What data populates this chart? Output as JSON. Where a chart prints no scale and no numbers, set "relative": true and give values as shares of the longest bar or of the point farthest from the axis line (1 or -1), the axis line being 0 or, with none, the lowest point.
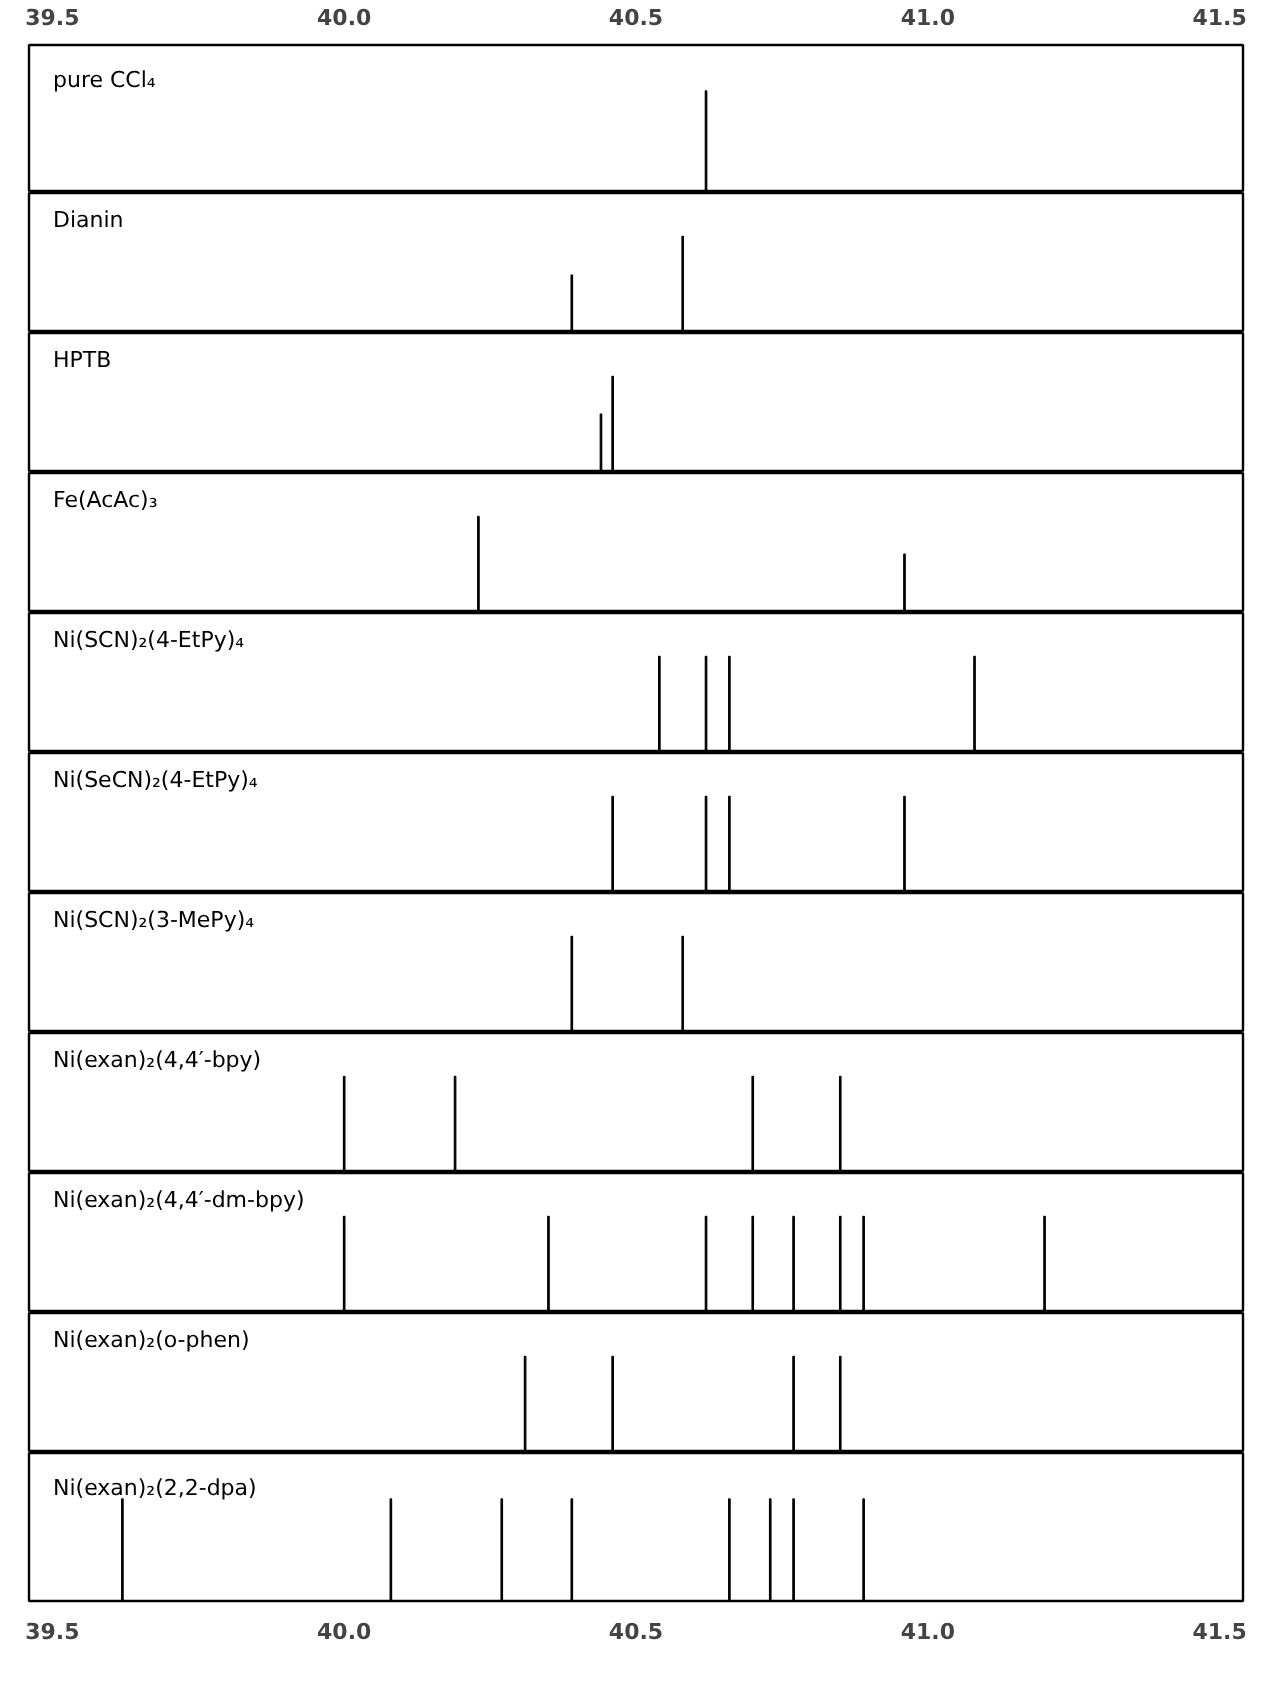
{
  "chart_data": [
    {
      "type": "bar",
      "title": "pure CCl₄",
      "relative": true,
      "color": "#000000",
      "x": [
        40.62
      ],
      "values": [
        1
      ],
      "xlim": [
        39.46,
        41.54
      ],
      "x2lim": [
        39.46,
        41.54
      ],
      "x2ticks": [
        {
          "value": 39.5,
          "label": "39.5"
        },
        {
          "value": 40.0,
          "label": "40.0"
        },
        {
          "value": 40.5,
          "label": "40.5"
        },
        {
          "value": 41.0,
          "label": "41.0"
        },
        {
          "value": 41.5,
          "label": "41.5"
        }
      ],
      "tick_labels": false
    },
    {
      "type": "bar",
      "title": "Dianin",
      "relative": true,
      "color": "#000000",
      "x": [
        40.39,
        40.58
      ],
      "values": [
        0.6,
        1
      ],
      "xlim": [
        39.46,
        41.54
      ],
      "tick_labels": false
    },
    {
      "type": "bar",
      "title": "HPTB",
      "relative": true,
      "color": "#000000",
      "x": [
        40.44,
        40.46
      ],
      "values": [
        0.61,
        1
      ],
      "xlim": [
        39.46,
        41.54
      ],
      "tick_labels": false
    },
    {
      "type": "bar",
      "title": "Fe(AcAc)₃",
      "relative": true,
      "color": "#000000",
      "x": [
        40.23,
        40.96
      ],
      "values": [
        1,
        0.61
      ],
      "xlim": [
        39.46,
        41.54
      ],
      "tick_labels": false
    },
    {
      "type": "bar",
      "title": "Ni(SCN)₂(4-EtPy)₄",
      "relative": true,
      "color": "#000000",
      "x": [
        40.54,
        40.62,
        40.66,
        41.08
      ],
      "values": [
        1,
        1,
        1,
        1
      ],
      "xlim": [
        39.46,
        41.54
      ],
      "tick_labels": false
    },
    {
      "type": "bar",
      "title": "Ni(SeCN)₂(4-EtPy)₄",
      "relative": true,
      "color": "#000000",
      "x": [
        40.46,
        40.62,
        40.66,
        40.96
      ],
      "values": [
        1,
        1,
        1,
        1
      ],
      "xlim": [
        39.46,
        41.54
      ],
      "tick_labels": false
    },
    {
      "type": "bar",
      "title": "Ni(SCN)₂(3-MePy)₄",
      "relative": true,
      "color": "#000000",
      "x": [
        40.39,
        40.58
      ],
      "values": [
        1,
        1
      ],
      "xlim": [
        39.46,
        41.54
      ],
      "tick_labels": false
    },
    {
      "type": "bar",
      "title": "Ni(exan)₂(4,4′-bpy)",
      "relative": true,
      "color": "#000000",
      "x": [
        40.0,
        40.19,
        40.7,
        40.85
      ],
      "values": [
        1,
        1,
        1,
        1
      ],
      "xlim": [
        39.46,
        41.54
      ],
      "tick_labels": false
    },
    {
      "type": "bar",
      "title": "Ni(exan)₂(4,4′-dm-bpy)",
      "relative": true,
      "color": "#000000",
      "x": [
        40.0,
        40.35,
        40.62,
        40.7,
        40.77,
        40.85,
        40.89,
        41.2
      ],
      "values": [
        1,
        1,
        1,
        1,
        1,
        1,
        1,
        1
      ],
      "xlim": [
        39.46,
        41.54
      ],
      "tick_labels": false
    },
    {
      "type": "bar",
      "title": "Ni(exan)₂(o-phen)",
      "relative": true,
      "color": "#000000",
      "x": [
        40.31,
        40.46,
        40.77,
        40.85
      ],
      "values": [
        1,
        1,
        1,
        1
      ],
      "xlim": [
        39.46,
        41.54
      ],
      "tick_labels": false
    },
    {
      "type": "bar",
      "title": "Ni(exan)₂(2,2-dpa)",
      "relative": true,
      "color": "#000000",
      "x": [
        39.62,
        40.08,
        40.27,
        40.39,
        40.66,
        40.73,
        40.77,
        40.89
      ],
      "values": [
        1,
        1,
        1,
        1,
        1,
        1,
        1,
        1
      ],
      "xlim": [
        39.46,
        41.54
      ],
      "xticks": [
        {
          "value": 39.5,
          "label": "39.5"
        },
        {
          "value": 40.0,
          "label": "40.0"
        },
        {
          "value": 40.5,
          "label": "40.5"
        },
        {
          "value": 41.0,
          "label": "41.0"
        },
        {
          "value": 41.5,
          "label": "41.5"
        }
      ],
      "tick_labels": "x"
    }
  ]
}
